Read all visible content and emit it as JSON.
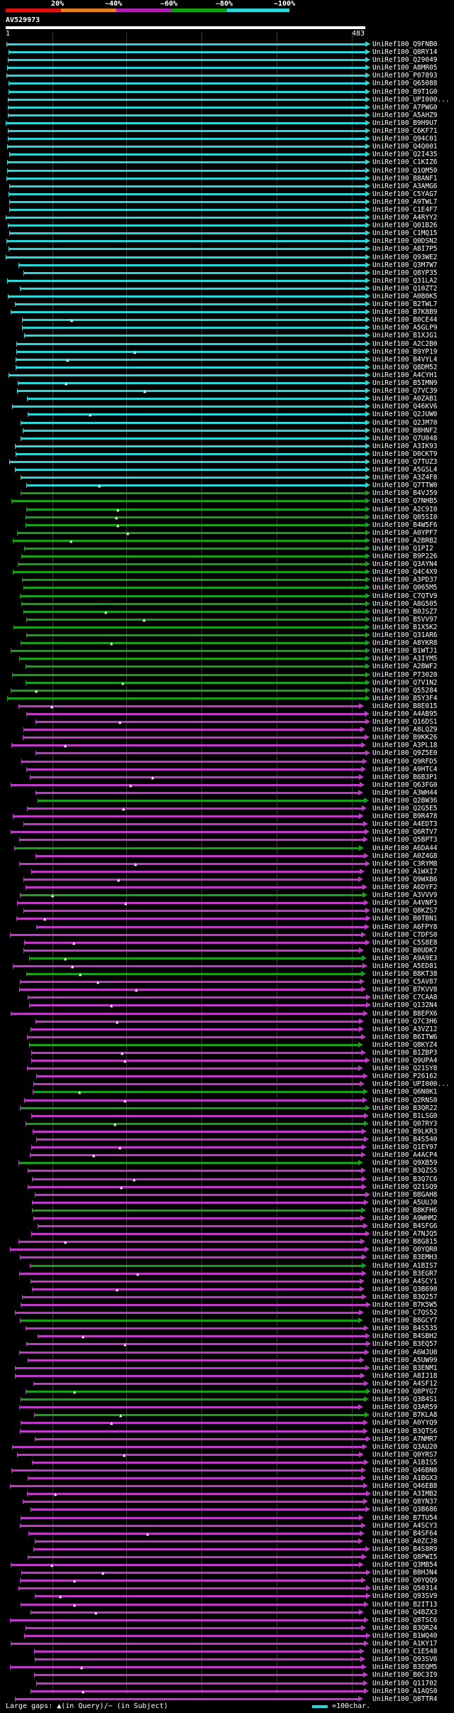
{
  "legend": {
    "labels": [
      "20%",
      "~40%",
      "~60%",
      "~80%",
      "~100%"
    ],
    "colors": [
      "#e01010",
      "#e08020",
      "#b020b0",
      "#10a010",
      "#2bd5d8"
    ]
  },
  "query": {
    "id": "AV529973",
    "start": "1",
    "end": "483"
  },
  "colors": {
    "cyan": "#2bd5d8",
    "green": "#19a019",
    "magenta": "#c03ac8"
  },
  "footer": {
    "gaps_text": "Large gaps: ▲(in Query)/− (in Subject)",
    "scale_text": "=100char."
  },
  "hits": [
    "UniRef100_Q9FNB0",
    "UniRef100_Q8RY14",
    "UniRef100_Q29049",
    "UniRef100_A8MR05",
    "UniRef100_P07893",
    "UniRef100_Q65088",
    "UniRef100_B9T1G0",
    "UniRef100_UPI000...",
    "UniRef100_A7PWG0",
    "UniRef100_A5AHZ9",
    "UniRef100_B9H9U7",
    "UniRef100_C6KF71",
    "UniRef100_Q94C01",
    "UniRef100_Q4Q001",
    "UniRef100_Q2I435",
    "UniRef100_C1KIZ6",
    "UniRef100_Q1QM50",
    "UniRef100_B8ANF1",
    "UniRef100_A3AMG6",
    "UniRef100_C5YAG7",
    "UniRef100_A9TWL7",
    "UniRef100_C1E4F7",
    "UniRef100_A4RYY2",
    "UniRef100_Q01B26",
    "UniRef100_C1MQ15",
    "UniRef100_Q0DSN2",
    "UniRef100_A8I7P5",
    "UniRef100_Q93WE2",
    "UniRef100_Q3M7W7",
    "UniRef100_Q8YP35",
    "UniRef100_Q31LA2",
    "UniRef100_Q10ZT2",
    "UniRef100_A0B0K5",
    "UniRef100_B2TWL7",
    "UniRef100_B7K8B9",
    "UniRef100_B0CE44",
    "UniRef100_A5GLP9",
    "UniRef100_B1XJG1",
    "UniRef100_A2C2B0",
    "UniRef100_B9YP19",
    "UniRef100_B4VYL4",
    "UniRef100_Q8DM52",
    "UniRef100_A4CYH1",
    "UniRef100_B5IMN9",
    "UniRef100_Q7VC39",
    "UniRef100_A0ZAB1",
    "UniRef100_Q46KV6",
    "UniRef100_Q2JUW0",
    "UniRef100_Q2JM70",
    "UniRef100_B8HNF2",
    "UniRef100_Q7U048",
    "UniRef100_A3IK93",
    "UniRef100_D0CKT9",
    "UniRef100_Q7TUZ3",
    "UniRef100_A5GSL4",
    "UniRef100_A3Z4F8",
    "UniRef100_Q7TTW0",
    "UniRef100_B4VJ59",
    "UniRef100_Q7NHB5",
    "UniRef100_A2C9I0",
    "UniRef100_Q05SI0",
    "UniRef100_B4W5F6",
    "UniRef100_A0YPF7",
    "UniRef100_A2BRB2",
    "UniRef100_Q1PI2",
    "UniRef100_B9P226",
    "UniRef100_Q3AYN4",
    "UniRef100_Q4C4X9",
    "UniRef100_A3PD37",
    "UniRef100_Q065M5",
    "UniRef100_C7QTV9",
    "UniRef100_A8G505",
    "UniRef100_B0JSZ7",
    "UniRef100_B5VV97",
    "UniRef100_B1X5K2",
    "UniRef100_Q31AR6",
    "UniRef100_A8YKR8",
    "UniRef100_B1WTJ1",
    "UniRef100_A3IYM5",
    "UniRef100_A2BWF2",
    "UniRef100_P73020",
    "UniRef100_Q7V1N2",
    "UniRef100_Q55284",
    "UniRef100_B5Y3F4",
    "UniRef100_B8E015",
    "UniRef100_A4AB95",
    "UniRef100_Q16DS1",
    "UniRef100_A8LQZ9",
    "UniRef100_B9KK26",
    "UniRef100_A3PL18",
    "UniRef100_Q9Z5E0",
    "UniRef100_Q9RFD5",
    "UniRef100_A9HTC4",
    "UniRef100_B6B3P1",
    "UniRef100_Q63FG0",
    "UniRef100_A3WH44",
    "UniRef100_Q2BW36",
    "UniRef100_Q2G5E5",
    "UniRef100_B9R478",
    "UniRef100_A4EDT3",
    "UniRef100_Q6RTV7",
    "UniRef100_Q5BPT3",
    "UniRef100_A6DA44",
    "UniRef100_A0Z4G8",
    "UniRef100_C3RYM8",
    "UniRef100_A1WXI7",
    "UniRef100_Q9WXB6",
    "UniRef100_A6DYF2",
    "UniRef100_A3VVV9",
    "UniRef100_A4VNP3",
    "UniRef100_Q8KZS7",
    "UniRef100_B0TBN1",
    "UniRef100_A6FPY8",
    "UniRef100_C7DFS0",
    "UniRef100_C5S8E8",
    "UniRef100_B0UDK7",
    "UniRef100_A9A9E3",
    "UniRef100_A5ED81",
    "UniRef100_B8KT38",
    "UniRef100_C5AV87",
    "UniRef100_B7KVV8",
    "UniRef100_C7CAA8",
    "UniRef100_Q132N4",
    "UniRef100_B8EPX6",
    "UniRef100_Q7C3H6",
    "UniRef100_A3VZ12",
    "UniRef100_B6ITW6",
    "UniRef100_Q8KYZ4",
    "UniRef100_B1ZBP3",
    "UniRef100_Q9UPA4",
    "UniRef100_Q21SY8",
    "UniRef100_P26162",
    "UniRef100_UPI000...",
    "UniRef100_Q6N0K1",
    "UniRef100_Q2RNS0",
    "UniRef100_B3QR22",
    "UniRef100_B1LSG0",
    "UniRef100_Q07RY3",
    "UniRef100_B9LKR3",
    "UniRef100_B4S540",
    "UniRef100_Q1EY97",
    "UniRef100_A4ACP4",
    "UniRef100_Q9XB59",
    "UniRef100_B3QZS5",
    "UniRef100_B3Q7C6",
    "UniRef100_Q21SQ9",
    "UniRef100_B8GAH8",
    "UniRef100_A5UUJ0",
    "UniRef100_B8KFH6",
    "UniRef100_A9WHM2",
    "UniRef100_B4SFG6",
    "UniRef100_A7NJQ5",
    "UniRef100_B8G815",
    "UniRef100_Q0YQR0",
    "UniRef100_B3EMH3",
    "UniRef100_A1BIS7",
    "UniRef100_B3EGR7",
    "UniRef100_A4SCY1",
    "UniRef100_Q3B690",
    "UniRef100_B3Q257",
    "UniRef100_B7K5W5",
    "UniRef100_C7QS52",
    "UniRef100_B8GCY7",
    "UniRef100_B4S535",
    "UniRef100_B4SBH2",
    "UniRef100_B3EQ57",
    "UniRef100_A6WJU0",
    "UniRef100_A5UW99",
    "UniRef100_B3ENM1",
    "UniRef100_A8IJ18",
    "UniRef100_A4SF12",
    "UniRef100_Q8PYG7",
    "UniRef100_Q3B4S1",
    "UniRef100_Q3AR59",
    "UniRef100_B7KLA8",
    "UniRef100_A0YYQ9",
    "UniRef100_B3QTS6",
    "UniRef100_A7NMR7",
    "UniRef100_Q3AU20",
    "UniRef100_Q0YRS7",
    "UniRef100_A1BIS5",
    "UniRef100_Q46BN0",
    "UniRef100_A1BGX3",
    "UniRef100_Q46EB8",
    "UniRef100_A3IMB2",
    "UniRef100_Q8YN37",
    "UniRef100_Q3B686",
    "UniRef100_B7TU54",
    "UniRef100_A4SCY3",
    "UniRef100_B4SF64",
    "UniRef100_A0ZCJ8",
    "UniRef100_B4S8R9",
    "UniRef100_Q8PWI5",
    "UniRef100_Q3MB54",
    "UniRef100_B8HJN4",
    "UniRef100_Q0YQQ9",
    "UniRef100_Q50314",
    "UniRef100_Q93SV9",
    "UniRef100_B2IT13",
    "UniRef100_Q4BZX3",
    "UniRef100_Q8TSC6",
    "UniRef100_B3QR24",
    "UniRef100_B1WQ40",
    "UniRef100_A1KY17",
    "UniRef100_C1E548",
    "UniRef100_Q93SV6",
    "UniRef100_B3EQM5",
    "UniRef100_B0C3I9",
    "UniRef100_Q11702",
    "UniRef100_A1AQS0",
    "UniRef100_Q8TTR4"
  ]
}
